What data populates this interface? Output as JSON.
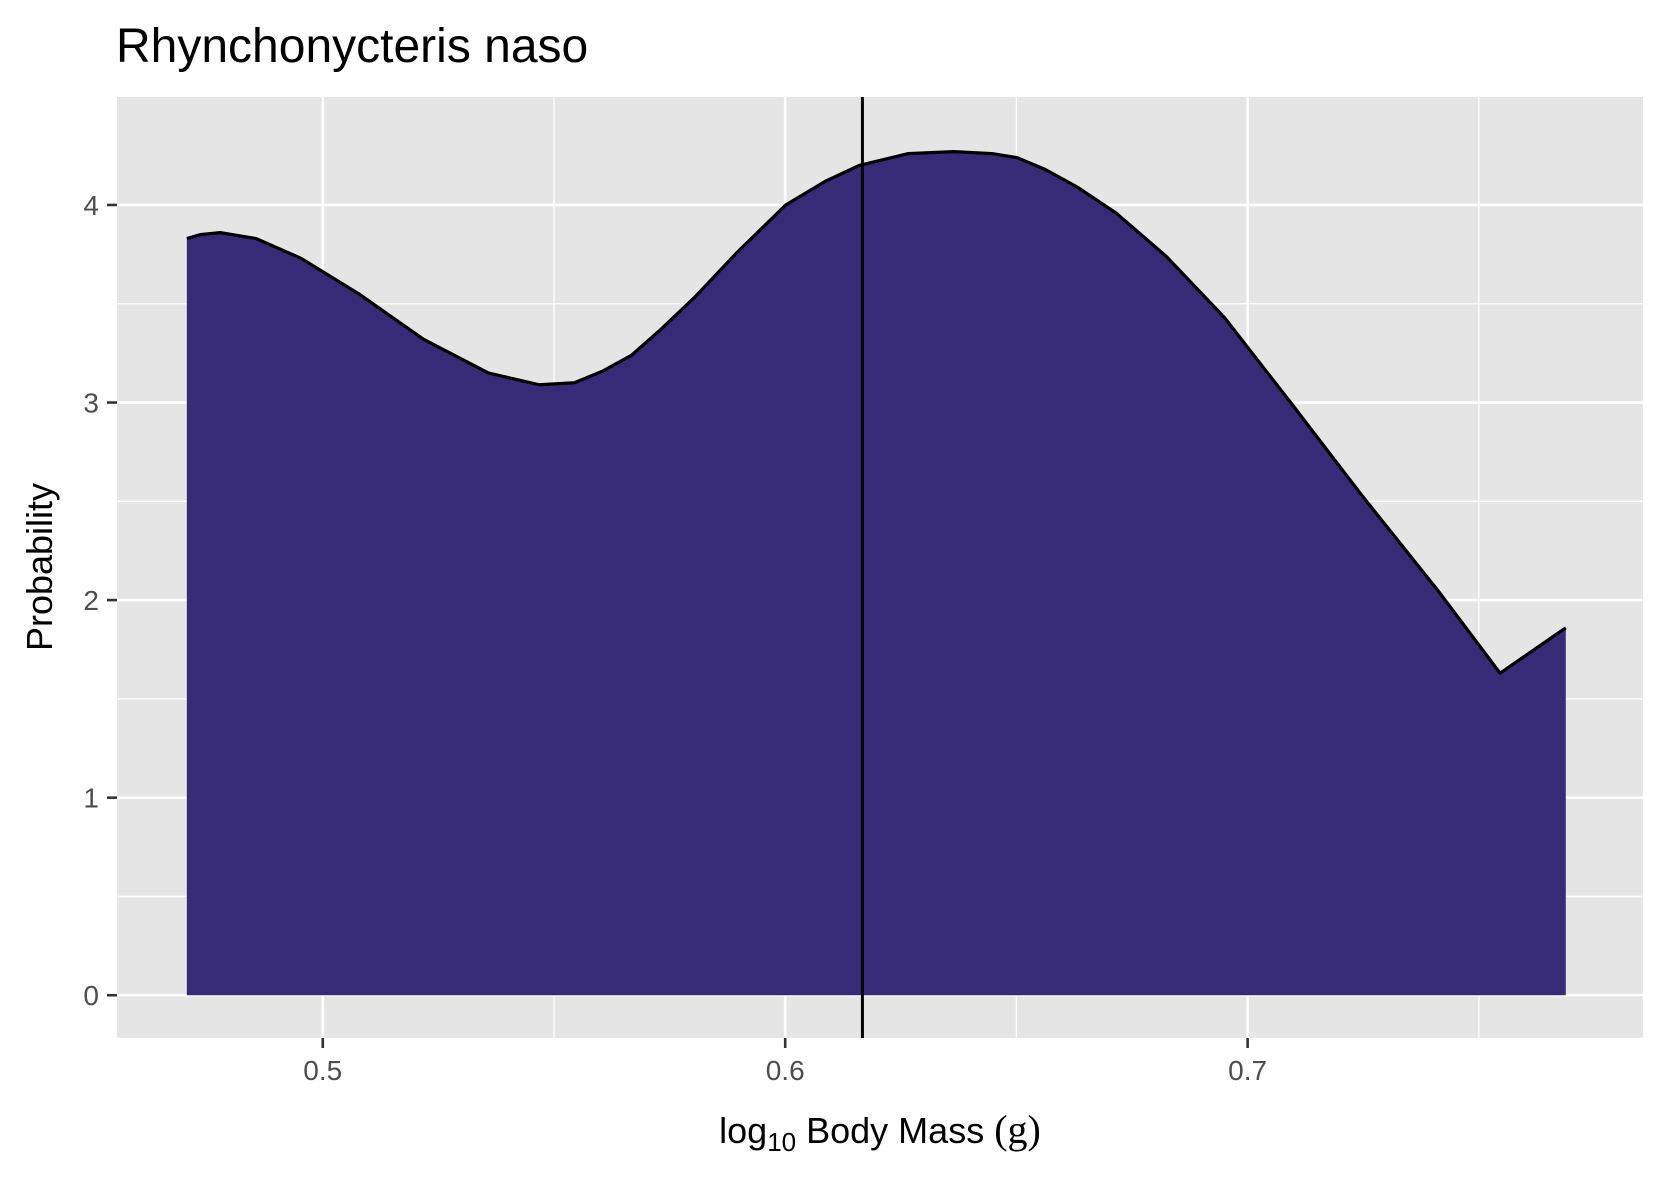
{
  "chart_data": {
    "type": "area",
    "title": "Rhynchonycteris naso",
    "xlabel": {
      "prefix": "log",
      "subscript": "10",
      "main": " Body Mass ",
      "unit": "(g)"
    },
    "ylabel": "Probability",
    "xlim": [
      0.4555,
      0.7855
    ],
    "ylim": [
      -0.2165,
      4.5465
    ],
    "x_ticks": [
      {
        "value": 0.5,
        "label": "0.5"
      },
      {
        "value": 0.6,
        "label": "0.6"
      },
      {
        "value": 0.7,
        "label": "0.7"
      }
    ],
    "y_ticks": [
      {
        "value": 0,
        "label": "0"
      },
      {
        "value": 1,
        "label": "1"
      },
      {
        "value": 2,
        "label": "2"
      },
      {
        "value": 3,
        "label": "3"
      },
      {
        "value": 4,
        "label": "4"
      }
    ],
    "x_minor_grid": [
      0.45,
      0.55,
      0.65,
      0.75
    ],
    "y_minor_grid": [
      0.5,
      1.5,
      2.5,
      3.5
    ],
    "grid": true,
    "series": [
      {
        "x": [
          0.4706,
          0.4735,
          0.4778,
          0.4856,
          0.4953,
          0.5078,
          0.5218,
          0.5358,
          0.5468,
          0.5544,
          0.5606,
          0.5668,
          0.5731,
          0.5803,
          0.5896,
          0.6001,
          0.6087,
          0.616,
          0.6266,
          0.6365,
          0.6447,
          0.6501,
          0.6562,
          0.6632,
          0.6715,
          0.6824,
          0.695,
          0.7093,
          0.7247,
          0.7411,
          0.7546,
          0.7688
        ],
        "y": [
          3.83,
          3.85,
          3.86,
          3.83,
          3.73,
          3.55,
          3.32,
          3.15,
          3.09,
          3.1,
          3.16,
          3.24,
          3.37,
          3.53,
          3.76,
          4.0,
          4.12,
          4.2,
          4.26,
          4.27,
          4.26,
          4.24,
          4.18,
          4.09,
          3.96,
          3.74,
          3.43,
          3.0,
          2.53,
          2.05,
          1.63,
          1.86
        ]
      }
    ],
    "vline": 0.6167,
    "colors": {
      "fill": "#372a77",
      "line": "#000000",
      "panel": "#e5e5e5",
      "grid": "#ffffff"
    }
  }
}
